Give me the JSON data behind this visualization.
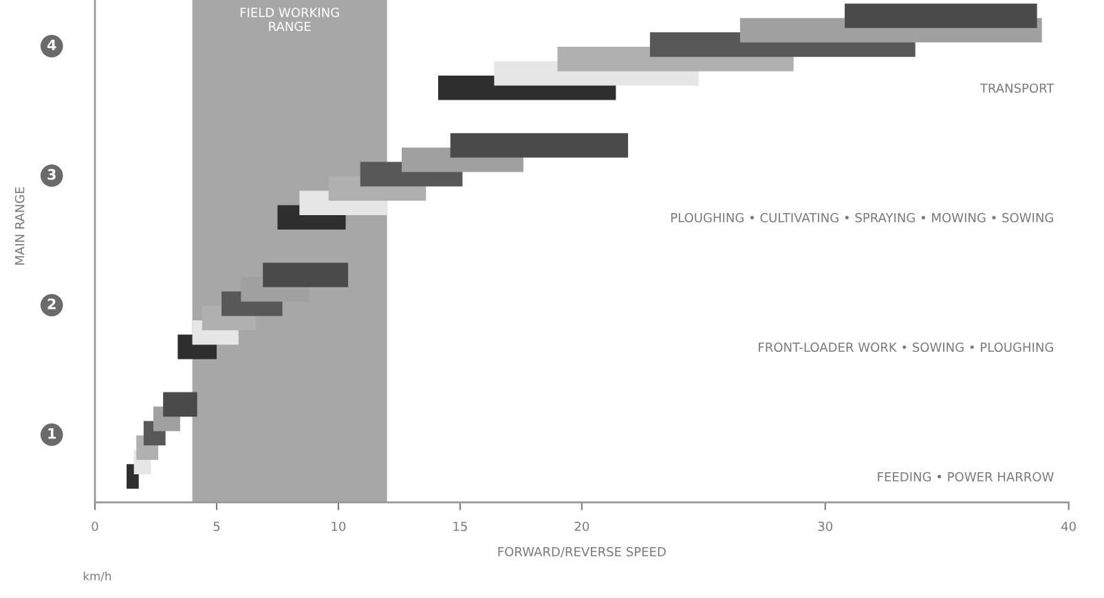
{
  "chart_data": {
    "type": "bar",
    "orientation": "horizontal",
    "xlabel": "FORWARD/REVERSE SPEED",
    "ylabel": "MAIN RANGE",
    "categories": [
      null,
      null,
      "4",
      null,
      null,
      null,
      null,
      null,
      null,
      null,
      null,
      "3",
      null,
      null,
      null,
      null,
      null,
      null,
      null,
      null,
      "2",
      null,
      null,
      null,
      null,
      null,
      null,
      null,
      null,
      "1",
      null,
      null,
      null
    ],
    "base": [
      30.8,
      26.5,
      22.8,
      19.0,
      16.4,
      14.1,
      null,
      null,
      null,
      14.6,
      12.6,
      10.9,
      9.6,
      8.4,
      7.5,
      null,
      null,
      null,
      6.9,
      6.0,
      5.2,
      4.4,
      4.0,
      3.4,
      null,
      null,
      null,
      2.8,
      2.4,
      2.0,
      1.7,
      1.6,
      1.3
    ],
    "values": [
      7.9,
      12.4,
      10.9,
      9.7,
      8.4,
      7.3,
      null,
      null,
      null,
      7.3,
      5.0,
      4.2,
      4.0,
      3.6,
      2.8,
      null,
      null,
      null,
      3.5,
      2.8,
      2.5,
      2.2,
      1.9,
      1.6,
      null,
      null,
      null,
      1.4,
      1.1,
      0.9,
      0.9,
      0.7,
      0.5
    ],
    "colors": [
      "#4a4a4a",
      "#a0a0a0",
      "#585858",
      "#b0b0b0",
      "#e6e6e6",
      "#2e2e2e",
      null,
      null,
      null,
      "#4a4a4a",
      "#a0a0a0",
      "#585858",
      "#b0b0b0",
      "#e6e6e6",
      "#2e2e2e",
      null,
      null,
      null,
      "#4a4a4a",
      "#a0a0a0",
      "#585858",
      "#b0b0b0",
      "#e6e6e6",
      "#2e2e2e",
      null,
      null,
      null,
      "#4a4a4a",
      "#a0a0a0",
      "#585858",
      "#b0b0b0",
      "#e6e6e6",
      "#2e2e2e"
    ],
    "xlim": [
      0,
      40
    ],
    "xticks": [
      0,
      5,
      10,
      15,
      20,
      30,
      40
    ],
    "bands": [
      {
        "axis": "x",
        "from": 4,
        "to": 12,
        "label": "FIELD WORKING RANGE",
        "color": "#8a8a8a"
      }
    ],
    "annotations": [
      "TRANSPORT",
      "PLOUGHING • CULTIVATING • SPRAYING • MOWING • SOWING",
      "FRONT-LOADER WORK • SOWING • PLOUGHING",
      "FEEDING • POWER HARROW",
      "km/h"
    ],
    "grid": false,
    "legend": false
  }
}
